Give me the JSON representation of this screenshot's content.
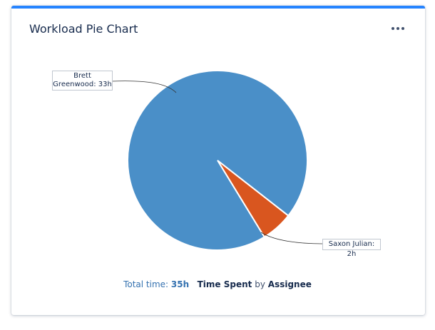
{
  "header": {
    "title": "Workload Pie Chart",
    "more_label": "More actions"
  },
  "chart_data": {
    "type": "pie",
    "slices": [
      {
        "label": "Brett Greenwood: 33h",
        "label_line1": "Brett",
        "label_line2": "Greenwood: 33h",
        "value": 33,
        "color": "#4a8fc8"
      },
      {
        "label": "Saxon Julian: 2h",
        "value": 2,
        "color": "#d9561f"
      }
    ]
  },
  "footer": {
    "total_label": "Total time:",
    "total_value": "35h",
    "metric": "Time Spent",
    "by": "by",
    "group": "Assignee"
  }
}
